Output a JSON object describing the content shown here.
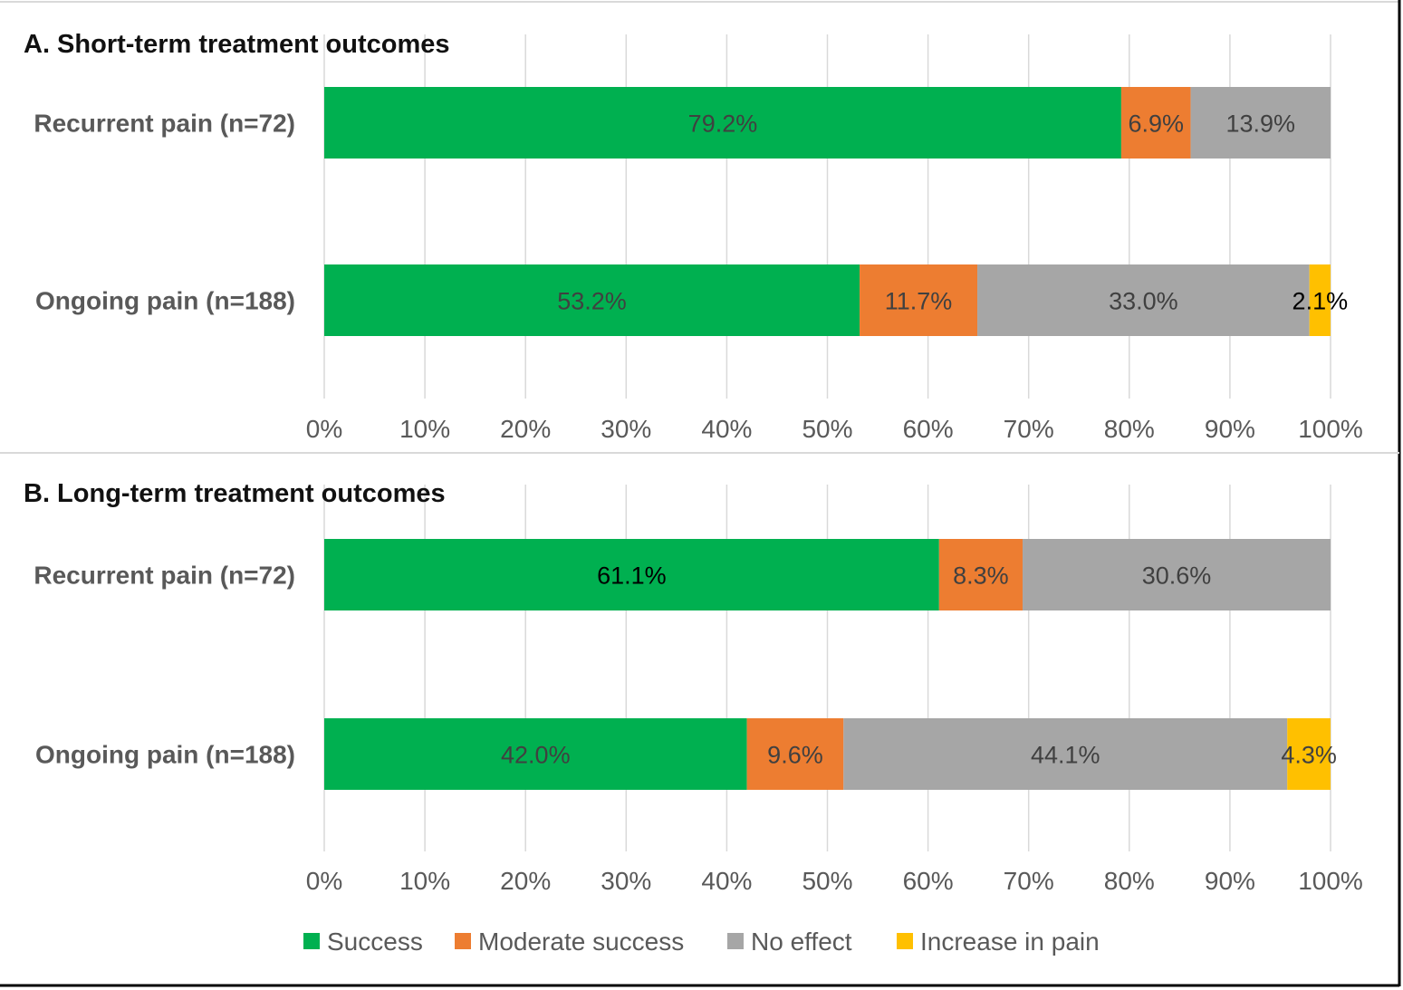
{
  "chart_data": {
    "type": "bar",
    "orientation": "horizontal",
    "stacked": true,
    "x_axis": {
      "min": 0,
      "max": 100,
      "step": 10,
      "unit": "%"
    },
    "legend_position": "bottom",
    "series": [
      {
        "name": "Success",
        "color": "#00b050"
      },
      {
        "name": "Moderate success",
        "color": "#ed7d31"
      },
      {
        "name": "No effect",
        "color": "#a6a6a6"
      },
      {
        "name": "Increase in pain",
        "color": "#ffc000"
      }
    ],
    "panels": [
      {
        "title": "A. Short-term treatment outcomes",
        "categories": [
          "Recurrent pain (n=72)",
          "Ongoing pain (n=188)"
        ],
        "values": [
          [
            79.2,
            6.9,
            13.9,
            0
          ],
          [
            53.2,
            11.7,
            33.0,
            2.1
          ]
        ],
        "labels": [
          [
            "79.2%",
            "6.9%",
            "13.9%",
            ""
          ],
          [
            "53.2%",
            "11.7%",
            "33.0%",
            "2.1%"
          ]
        ],
        "label_colors": [
          [
            "#404040",
            "#404040",
            "#404040",
            "#000000"
          ],
          [
            "#404040",
            "#404040",
            "#404040",
            "#000000"
          ]
        ]
      },
      {
        "title": "B. Long-term treatment outcomes",
        "categories": [
          "Recurrent pain (n=72)",
          "Ongoing pain (n=188)"
        ],
        "values": [
          [
            61.1,
            8.3,
            30.6,
            0
          ],
          [
            42.0,
            9.6,
            44.1,
            4.3
          ]
        ],
        "labels": [
          [
            "61.1%",
            "8.3%",
            "30.6%",
            ""
          ],
          [
            "42.0%",
            "9.6%",
            "44.1%",
            "4.3%"
          ]
        ],
        "label_colors": [
          [
            "#000000",
            "#404040",
            "#404040",
            "#000000"
          ],
          [
            "#404040",
            "#404040",
            "#404040",
            "#404040"
          ]
        ]
      }
    ]
  }
}
